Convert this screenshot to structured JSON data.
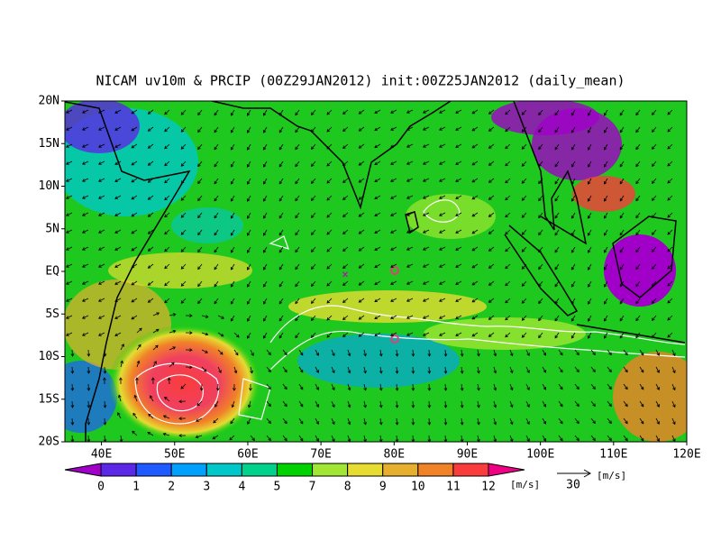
{
  "title": "NICAM uv10m & PRCIP (00Z29JAN2012) init:00Z25JAN2012 (daily_mean)",
  "lat_labels": [
    "20N",
    "15N",
    "10N",
    "5N",
    "EQ",
    "5S",
    "10S",
    "15S",
    "20S"
  ],
  "lon_labels": [
    "40E",
    "50E",
    "60E",
    "70E",
    "80E",
    "90E",
    "100E",
    "110E",
    "120E"
  ],
  "colorbar": {
    "ticks": [
      0,
      1,
      2,
      3,
      4,
      5,
      7,
      8,
      9,
      10,
      11,
      12
    ],
    "colors": [
      "#a000c8",
      "#5a28e6",
      "#1e5aff",
      "#00a0ff",
      "#00c8c8",
      "#00d28c",
      "#00d200",
      "#a0e632",
      "#e6dc32",
      "#e6af2d",
      "#f08228",
      "#fa3c3c",
      "#f00082"
    ],
    "unit": "[m/s]"
  },
  "reference_vector": {
    "value": 30,
    "unit": "[m/s]"
  }
}
